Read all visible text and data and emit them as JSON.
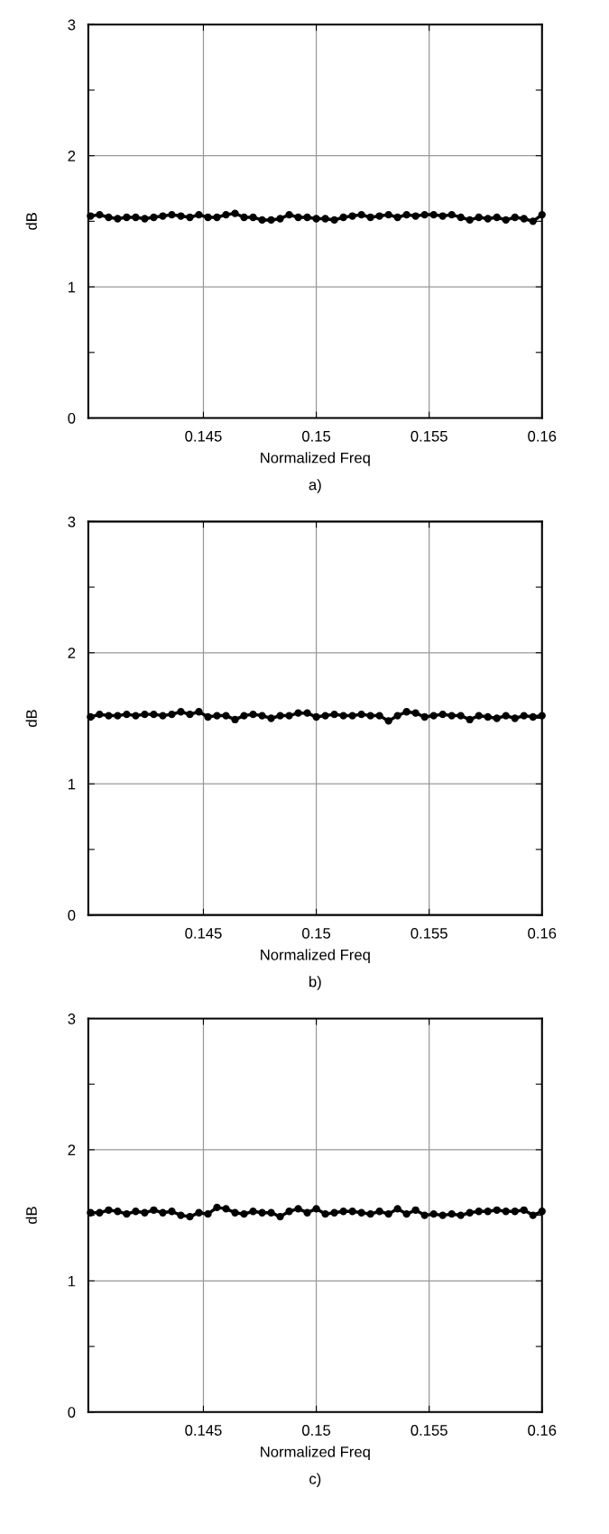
{
  "chart_data": [
    {
      "type": "line",
      "xlabel": "Normalized Freq",
      "ylabel": "dB",
      "annotations": [
        "a)"
      ],
      "xlim": [
        0.1399,
        0.16
      ],
      "ylim": [
        0,
        3
      ],
      "xticks": [
        0.145,
        0.15,
        0.155,
        0.16
      ],
      "yticks": [
        0,
        {
          "value": 0.5,
          "label": null
        },
        1,
        {
          "value": 1.5,
          "label": null
        },
        2,
        {
          "value": 2.5,
          "label": null
        },
        3
      ],
      "grid": true,
      "marker": "circle",
      "line_style": "solid",
      "x": [
        0.14,
        0.1404,
        0.1408,
        0.1412,
        0.1416,
        0.142,
        0.1424,
        0.1428,
        0.1432,
        0.1436,
        0.144,
        0.1444,
        0.1448,
        0.1452,
        0.1456,
        0.146,
        0.1464,
        0.1468,
        0.1472,
        0.1476,
        0.148,
        0.1484,
        0.1488,
        0.1492,
        0.1496,
        0.15,
        0.1504,
        0.1508,
        0.1512,
        0.1516,
        0.152,
        0.1524,
        0.1528,
        0.1532,
        0.1536,
        0.154,
        0.1544,
        0.1548,
        0.1552,
        0.1556,
        0.156,
        0.1564,
        0.1568,
        0.1572,
        0.1576,
        0.158,
        0.1584,
        0.1588,
        0.1592,
        0.1596,
        0.16
      ],
      "series": [
        {
          "color": "#000000",
          "values": [
            1.54,
            1.55,
            1.53,
            1.52,
            1.53,
            1.53,
            1.52,
            1.53,
            1.54,
            1.55,
            1.54,
            1.53,
            1.55,
            1.53,
            1.53,
            1.55,
            1.56,
            1.53,
            1.53,
            1.51,
            1.51,
            1.52,
            1.55,
            1.53,
            1.53,
            1.52,
            1.52,
            1.51,
            1.53,
            1.54,
            1.55,
            1.53,
            1.54,
            1.55,
            1.53,
            1.55,
            1.54,
            1.55,
            1.55,
            1.54,
            1.55,
            1.53,
            1.51,
            1.53,
            1.52,
            1.53,
            1.51,
            1.53,
            1.52,
            1.5,
            1.55
          ]
        }
      ]
    },
    {
      "type": "line",
      "xlabel": "Normalized Freq",
      "ylabel": "dB",
      "annotations": [
        "b)"
      ],
      "xlim": [
        0.1399,
        0.16
      ],
      "ylim": [
        0,
        3
      ],
      "xticks": [
        0.145,
        0.15,
        0.155,
        0.16
      ],
      "yticks": [
        0,
        {
          "value": 0.5,
          "label": null
        },
        1,
        {
          "value": 1.5,
          "label": null
        },
        2,
        {
          "value": 2.5,
          "label": null
        },
        3
      ],
      "grid": true,
      "marker": "circle",
      "line_style": "solid",
      "x": [
        0.14,
        0.1404,
        0.1408,
        0.1412,
        0.1416,
        0.142,
        0.1424,
        0.1428,
        0.1432,
        0.1436,
        0.144,
        0.1444,
        0.1448,
        0.1452,
        0.1456,
        0.146,
        0.1464,
        0.1468,
        0.1472,
        0.1476,
        0.148,
        0.1484,
        0.1488,
        0.1492,
        0.1496,
        0.15,
        0.1504,
        0.1508,
        0.1512,
        0.1516,
        0.152,
        0.1524,
        0.1528,
        0.1532,
        0.1536,
        0.154,
        0.1544,
        0.1548,
        0.1552,
        0.1556,
        0.156,
        0.1564,
        0.1568,
        0.1572,
        0.1576,
        0.158,
        0.1584,
        0.1588,
        0.1592,
        0.1596,
        0.16
      ],
      "series": [
        {
          "color": "#000000",
          "values": [
            1.51,
            1.53,
            1.52,
            1.52,
            1.53,
            1.52,
            1.53,
            1.53,
            1.52,
            1.53,
            1.55,
            1.53,
            1.55,
            1.51,
            1.52,
            1.52,
            1.49,
            1.52,
            1.53,
            1.52,
            1.5,
            1.52,
            1.52,
            1.54,
            1.54,
            1.51,
            1.52,
            1.53,
            1.52,
            1.52,
            1.53,
            1.52,
            1.52,
            1.48,
            1.52,
            1.55,
            1.54,
            1.51,
            1.52,
            1.53,
            1.52,
            1.52,
            1.49,
            1.52,
            1.51,
            1.5,
            1.52,
            1.5,
            1.52,
            1.51,
            1.52
          ]
        }
      ]
    },
    {
      "type": "line",
      "xlabel": "Normalized Freq",
      "ylabel": "dB",
      "annotations": [
        "c)"
      ],
      "xlim": [
        0.1399,
        0.16
      ],
      "ylim": [
        0,
        3
      ],
      "xticks": [
        0.145,
        0.15,
        0.155,
        0.16
      ],
      "yticks": [
        0,
        {
          "value": 0.5,
          "label": null
        },
        1,
        {
          "value": 1.5,
          "label": null
        },
        2,
        {
          "value": 2.5,
          "label": null
        },
        3
      ],
      "grid": true,
      "marker": "circle",
      "line_style": "solid",
      "x": [
        0.14,
        0.1404,
        0.1408,
        0.1412,
        0.1416,
        0.142,
        0.1424,
        0.1428,
        0.1432,
        0.1436,
        0.144,
        0.1444,
        0.1448,
        0.1452,
        0.1456,
        0.146,
        0.1464,
        0.1468,
        0.1472,
        0.1476,
        0.148,
        0.1484,
        0.1488,
        0.1492,
        0.1496,
        0.15,
        0.1504,
        0.1508,
        0.1512,
        0.1516,
        0.152,
        0.1524,
        0.1528,
        0.1532,
        0.1536,
        0.154,
        0.1544,
        0.1548,
        0.1552,
        0.1556,
        0.156,
        0.1564,
        0.1568,
        0.1572,
        0.1576,
        0.158,
        0.1584,
        0.1588,
        0.1592,
        0.1596,
        0.16
      ],
      "series": [
        {
          "color": "#000000",
          "values": [
            1.52,
            1.52,
            1.54,
            1.53,
            1.51,
            1.53,
            1.52,
            1.54,
            1.52,
            1.53,
            1.5,
            1.49,
            1.52,
            1.51,
            1.56,
            1.55,
            1.52,
            1.51,
            1.53,
            1.52,
            1.52,
            1.49,
            1.53,
            1.55,
            1.52,
            1.55,
            1.51,
            1.52,
            1.53,
            1.53,
            1.52,
            1.51,
            1.53,
            1.51,
            1.55,
            1.51,
            1.54,
            1.5,
            1.51,
            1.5,
            1.51,
            1.5,
            1.52,
            1.53,
            1.53,
            1.54,
            1.53,
            1.53,
            1.54,
            1.5,
            1.53
          ]
        }
      ]
    }
  ]
}
